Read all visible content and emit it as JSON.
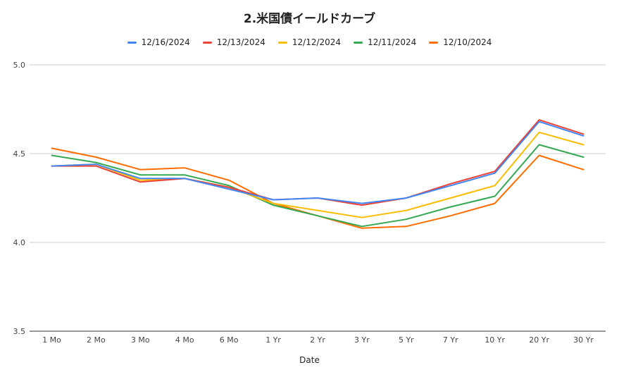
{
  "chart_data": {
    "type": "line",
    "title": "2.米国債イールドカーブ",
    "xlabel": "Date",
    "ylabel": "",
    "categories": [
      "1 Mo",
      "2 Mo",
      "3 Mo",
      "4 Mo",
      "6 Mo",
      "1 Yr",
      "2 Yr",
      "3 Yr",
      "5 Yr",
      "7 Yr",
      "10 Yr",
      "20 Yr",
      "30 Yr"
    ],
    "ylim": [
      3.5,
      5.0
    ],
    "yticks": [
      "3.5",
      "4.0",
      "4.5",
      "5.0"
    ],
    "grid": true,
    "legend_position": "top",
    "series": [
      {
        "name": "12/16/2024",
        "color": "#4285f4",
        "values": [
          4.43,
          4.44,
          4.36,
          4.36,
          4.3,
          4.24,
          4.25,
          4.22,
          4.25,
          4.32,
          4.39,
          4.68,
          4.6
        ]
      },
      {
        "name": "12/13/2024",
        "color": "#ea4335",
        "values": [
          4.43,
          4.43,
          4.34,
          4.36,
          4.31,
          4.24,
          4.25,
          4.21,
          4.25,
          4.33,
          4.4,
          4.69,
          4.61
        ]
      },
      {
        "name": "12/12/2024",
        "color": "#fbbc04",
        "values": [
          4.43,
          4.44,
          4.35,
          4.36,
          4.31,
          4.22,
          4.18,
          4.14,
          4.18,
          4.25,
          4.32,
          4.62,
          4.55
        ]
      },
      {
        "name": "12/11/2024",
        "color": "#34a853",
        "values": [
          4.49,
          4.45,
          4.38,
          4.38,
          4.32,
          4.21,
          4.15,
          4.09,
          4.13,
          4.2,
          4.26,
          4.55,
          4.48
        ]
      },
      {
        "name": "12/10/2024",
        "color": "#ff6d01",
        "values": [
          4.53,
          4.48,
          4.41,
          4.42,
          4.35,
          4.22,
          4.15,
          4.08,
          4.09,
          4.15,
          4.22,
          4.49,
          4.41
        ]
      }
    ]
  }
}
